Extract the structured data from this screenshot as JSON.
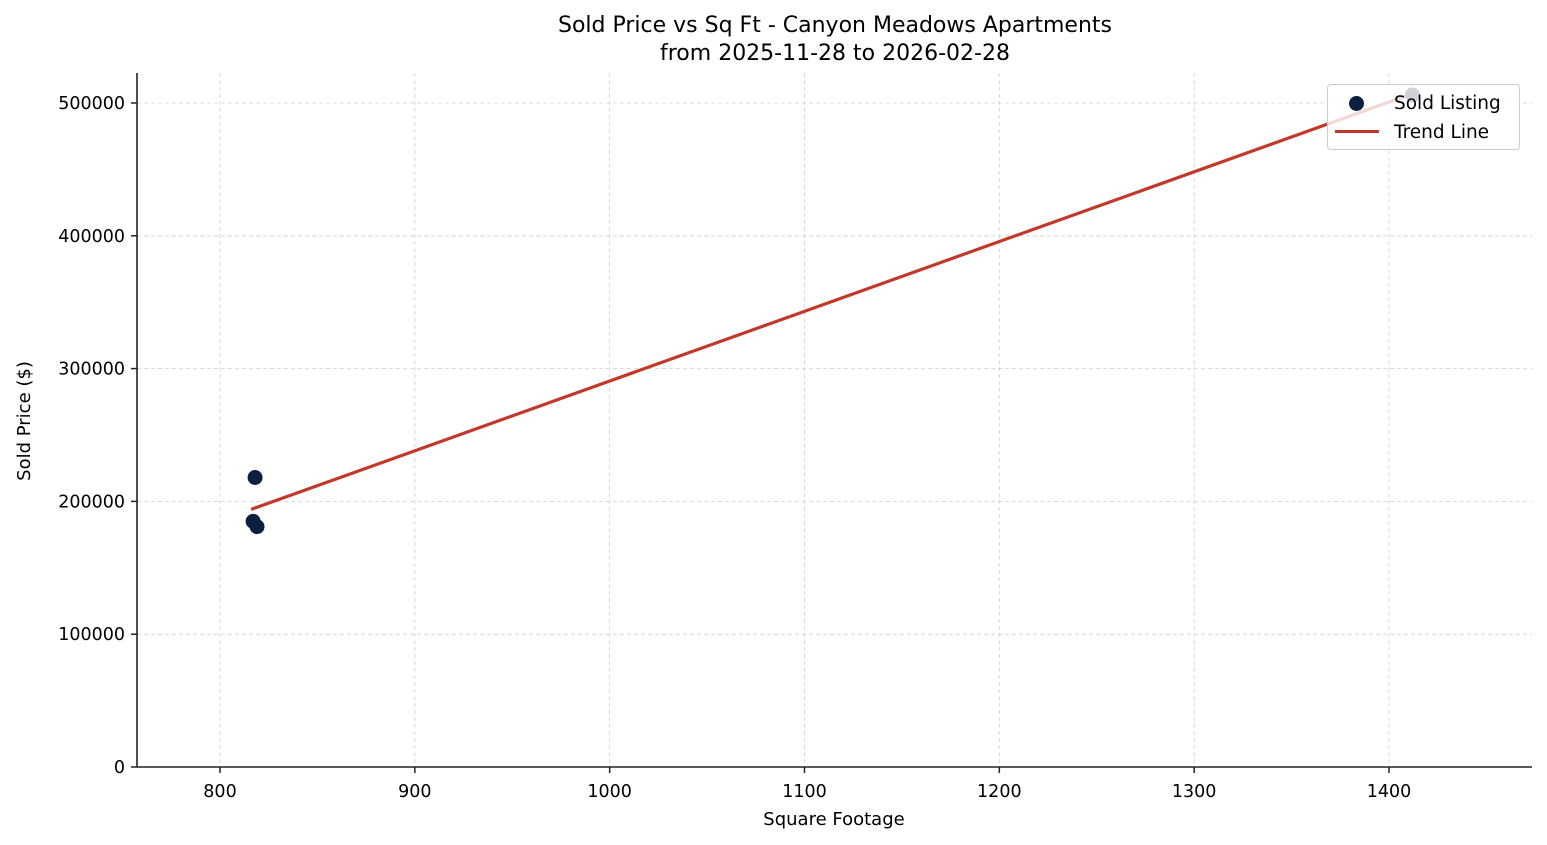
{
  "chart_data": {
    "type": "scatter",
    "title": "Sold Price vs Sq Ft - Canyon Meadows Apartments",
    "subtitle": "from 2025-11-28 to 2026-02-28",
    "xlabel": "Square Footage",
    "ylabel": "Sold Price ($)",
    "xlim": [
      757,
      1475
    ],
    "ylim": [
      0,
      522000
    ],
    "xticks": [
      800,
      900,
      1000,
      1100,
      1200,
      1300,
      1400
    ],
    "yticks": [
      0,
      100000,
      200000,
      300000,
      400000,
      500000
    ],
    "grid": true,
    "legend_position": "upper right",
    "series": [
      {
        "name": "Sold Listing",
        "type": "scatter",
        "color": "#0b1f3f",
        "points": [
          {
            "x": 818,
            "y": 218000
          },
          {
            "x": 817,
            "y": 185000
          },
          {
            "x": 819,
            "y": 181000
          },
          {
            "x": 1412,
            "y": 506000
          }
        ]
      },
      {
        "name": "Trend Line",
        "type": "line",
        "color": "#c0392b",
        "points": [
          {
            "x": 816,
            "y": 194000
          },
          {
            "x": 1412,
            "y": 507000
          }
        ]
      }
    ]
  },
  "title": {
    "line1": "Sold Price vs Sq Ft - Canyon Meadows Apartments",
    "line2": "from 2025-11-28 to 2026-02-28"
  },
  "legend": {
    "items": [
      {
        "label": "Sold Listing",
        "color": "#0b1f3f",
        "symbol": "dot"
      },
      {
        "label": "Trend Line",
        "color": "#c0392b",
        "symbol": "line"
      }
    ]
  },
  "axes": {
    "x_label": "Square Footage",
    "y_label": "Sold Price ($)",
    "x_tick_labels": [
      "800",
      "900",
      "1000",
      "1100",
      "1200",
      "1300",
      "1400"
    ],
    "y_tick_labels": [
      "0",
      "100000",
      "200000",
      "300000",
      "400000",
      "500000"
    ]
  }
}
